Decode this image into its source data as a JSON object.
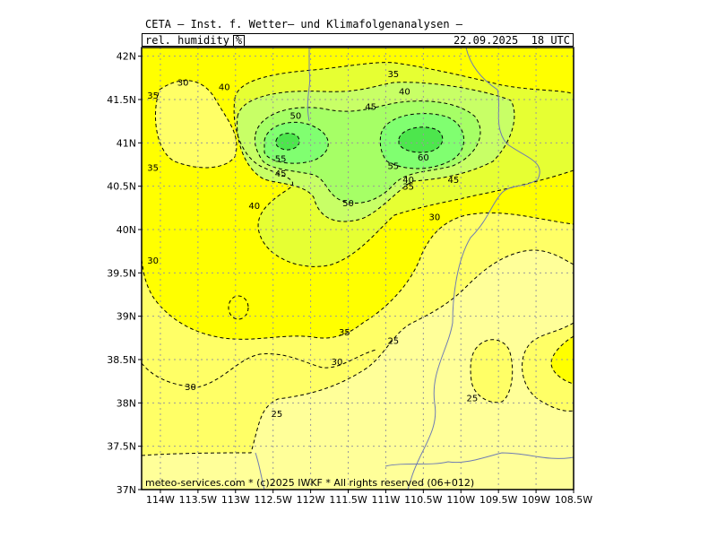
{
  "header": {
    "title": "CETA — Inst. f. Wetter— und Klimafolgenanalysen —",
    "parameter": "rel._humidity",
    "unit": "%",
    "valid_time": "22.09.2025  18 UTC"
  },
  "footer": {
    "credit": "meteo-services.com * (c)2025 IWKF * All rights reserved (06+012)"
  },
  "colors": {
    "c25": "#FFFF99",
    "c30": "#FFFF66",
    "c35": "#FFFF00",
    "c40": "#E6FF33",
    "c45": "#C8FF66",
    "c50": "#A6FF66",
    "c55": "#80FF70",
    "c60": "#4DE64D",
    "contour": "#000000",
    "border": "#6F7CB3",
    "grid": "#9A9A9A"
  },
  "chart_data": {
    "type": "contour-map",
    "variable": "rel._humidity",
    "unit": "%",
    "lon_range": [
      -114.25,
      -108.5
    ],
    "lat_range": [
      37.0,
      42.1
    ],
    "x_ticks": [
      "114W",
      "113.5W",
      "113W",
      "112.5W",
      "112W",
      "111.5W",
      "111W",
      "110.5W",
      "110W",
      "109.5W",
      "109W",
      "108.5W"
    ],
    "y_ticks": [
      "42N",
      "41.5N",
      "41N",
      "40.5N",
      "40N",
      "39.5N",
      "39N",
      "38.5N",
      "38N",
      "37.5N",
      "37N"
    ],
    "contour_levels": [
      25,
      30,
      35,
      40,
      45,
      50,
      55,
      60
    ],
    "contour_labels": [
      {
        "text": "35",
        "lon": -114.1,
        "lat": 41.55
      },
      {
        "text": "30",
        "lon": -113.7,
        "lat": 41.7
      },
      {
        "text": "40",
        "lon": -113.15,
        "lat": 41.65
      },
      {
        "text": "35",
        "lon": -110.9,
        "lat": 41.8
      },
      {
        "text": "40",
        "lon": -110.75,
        "lat": 41.6
      },
      {
        "text": "45",
        "lon": -111.2,
        "lat": 41.42
      },
      {
        "text": "50",
        "lon": -112.2,
        "lat": 41.32
      },
      {
        "text": "55",
        "lon": -112.4,
        "lat": 40.82
      },
      {
        "text": "45",
        "lon": -112.4,
        "lat": 40.65
      },
      {
        "text": "55",
        "lon": -110.9,
        "lat": 40.74
      },
      {
        "text": "60",
        "lon": -110.5,
        "lat": 40.84
      },
      {
        "text": "35",
        "lon": -114.1,
        "lat": 40.72
      },
      {
        "text": "40",
        "lon": -112.75,
        "lat": 40.28
      },
      {
        "text": "50",
        "lon": -111.5,
        "lat": 40.31
      },
      {
        "text": "40",
        "lon": -110.7,
        "lat": 40.58
      },
      {
        "text": "35",
        "lon": -110.7,
        "lat": 40.5
      },
      {
        "text": "45",
        "lon": -110.1,
        "lat": 40.58
      },
      {
        "text": "30",
        "lon": -110.35,
        "lat": 40.15
      },
      {
        "text": "30",
        "lon": -114.1,
        "lat": 39.65
      },
      {
        "text": "35",
        "lon": -111.55,
        "lat": 38.82
      },
      {
        "text": "25",
        "lon": -110.9,
        "lat": 38.72
      },
      {
        "text": "30",
        "lon": -111.65,
        "lat": 38.48
      },
      {
        "text": "30",
        "lon": -113.6,
        "lat": 38.19
      },
      {
        "text": "25",
        "lon": -109.85,
        "lat": 38.06
      },
      {
        "text": "25",
        "lon": -112.45,
        "lat": 37.88
      }
    ],
    "grid": true
  }
}
